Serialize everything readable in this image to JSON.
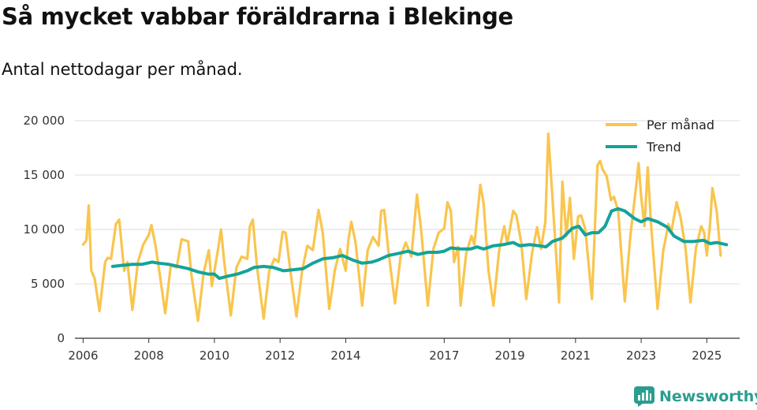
{
  "header": {
    "title": "Så mycket vabbar föräldrarna i Blekinge",
    "subtitle": "Antal nettodagar per månad."
  },
  "brand": {
    "name": "Newsworthy",
    "color": "#2a9d8f"
  },
  "chart_data": {
    "type": "line",
    "title": "Så mycket vabbar föräldrarna i Blekinge",
    "subtitle": "Antal nettodagar per månad.",
    "xlabel": "",
    "ylabel": "",
    "xlim": [
      2005.75,
      2026.0
    ],
    "ylim": [
      0,
      20000
    ],
    "grid": true,
    "y_ticks": [
      {
        "value": 0,
        "label": "0"
      },
      {
        "value": 5000,
        "label": "5 000"
      },
      {
        "value": 10000,
        "label": "10 000"
      },
      {
        "value": 15000,
        "label": "15 000"
      },
      {
        "value": 20000,
        "label": "20 000"
      }
    ],
    "x_ticks": [
      {
        "value": 2006,
        "label": "2006"
      },
      {
        "value": 2008,
        "label": "2008"
      },
      {
        "value": 2010,
        "label": "2010"
      },
      {
        "value": 2012,
        "label": "2012"
      },
      {
        "value": 2014,
        "label": "2014"
      },
      {
        "value": 2017,
        "label": "2017"
      },
      {
        "value": 2019,
        "label": "2019"
      },
      {
        "value": 2021,
        "label": "2021"
      },
      {
        "value": 2023,
        "label": "2023"
      },
      {
        "value": 2025,
        "label": "2025"
      }
    ],
    "legend_position": "top-right",
    "series": [
      {
        "name": "Per månad",
        "color": "#f9c54e",
        "points": [
          [
            2006.0,
            8600
          ],
          [
            2006.1,
            9000
          ],
          [
            2006.17,
            12200
          ],
          [
            2006.25,
            6200
          ],
          [
            2006.35,
            5500
          ],
          [
            2006.5,
            2500
          ],
          [
            2006.67,
            7000
          ],
          [
            2006.75,
            7400
          ],
          [
            2006.85,
            7300
          ],
          [
            2007.0,
            10500
          ],
          [
            2007.1,
            10900
          ],
          [
            2007.25,
            6200
          ],
          [
            2007.35,
            7000
          ],
          [
            2007.5,
            2600
          ],
          [
            2007.67,
            7000
          ],
          [
            2007.83,
            8600
          ],
          [
            2008.0,
            9500
          ],
          [
            2008.08,
            10400
          ],
          [
            2008.2,
            8600
          ],
          [
            2008.33,
            6000
          ],
          [
            2008.5,
            2300
          ],
          [
            2008.67,
            6700
          ],
          [
            2008.85,
            6500
          ],
          [
            2009.0,
            9100
          ],
          [
            2009.2,
            8900
          ],
          [
            2009.3,
            5800
          ],
          [
            2009.5,
            1600
          ],
          [
            2009.67,
            6000
          ],
          [
            2009.83,
            8100
          ],
          [
            2009.92,
            4800
          ],
          [
            2010.1,
            8000
          ],
          [
            2010.2,
            10000
          ],
          [
            2010.3,
            7000
          ],
          [
            2010.5,
            2100
          ],
          [
            2010.67,
            6500
          ],
          [
            2010.83,
            7500
          ],
          [
            2011.0,
            7300
          ],
          [
            2011.08,
            10300
          ],
          [
            2011.17,
            10900
          ],
          [
            2011.3,
            6500
          ],
          [
            2011.5,
            1800
          ],
          [
            2011.67,
            6200
          ],
          [
            2011.83,
            7300
          ],
          [
            2011.95,
            7000
          ],
          [
            2012.08,
            9800
          ],
          [
            2012.17,
            9700
          ],
          [
            2012.3,
            6500
          ],
          [
            2012.5,
            2000
          ],
          [
            2012.67,
            6200
          ],
          [
            2012.83,
            8500
          ],
          [
            2013.0,
            8100
          ],
          [
            2013.17,
            11800
          ],
          [
            2013.3,
            9700
          ],
          [
            2013.5,
            2700
          ],
          [
            2013.67,
            6300
          ],
          [
            2013.83,
            8200
          ],
          [
            2014.0,
            6200
          ],
          [
            2014.08,
            9000
          ],
          [
            2014.17,
            10700
          ],
          [
            2014.3,
            8800
          ],
          [
            2014.5,
            3000
          ],
          [
            2014.67,
            8100
          ],
          [
            2014.83,
            9300
          ],
          [
            2015.0,
            8500
          ],
          [
            2015.08,
            11700
          ],
          [
            2015.17,
            11800
          ],
          [
            2015.3,
            8000
          ],
          [
            2015.5,
            3200
          ],
          [
            2015.67,
            7500
          ],
          [
            2015.83,
            8800
          ],
          [
            2016.0,
            7500
          ],
          [
            2016.17,
            13200
          ],
          [
            2016.3,
            9900
          ],
          [
            2016.5,
            3000
          ],
          [
            2016.67,
            8200
          ],
          [
            2016.83,
            9700
          ],
          [
            2017.0,
            10100
          ],
          [
            2017.1,
            12500
          ],
          [
            2017.2,
            11700
          ],
          [
            2017.3,
            7000
          ],
          [
            2017.42,
            8400
          ],
          [
            2017.5,
            3000
          ],
          [
            2017.67,
            7800
          ],
          [
            2017.83,
            9400
          ],
          [
            2017.92,
            8600
          ],
          [
            2018.1,
            14100
          ],
          [
            2018.2,
            12400
          ],
          [
            2018.35,
            6200
          ],
          [
            2018.5,
            3000
          ],
          [
            2018.67,
            8000
          ],
          [
            2018.83,
            10300
          ],
          [
            2018.92,
            8700
          ],
          [
            2019.1,
            11700
          ],
          [
            2019.2,
            11300
          ],
          [
            2019.35,
            8700
          ],
          [
            2019.5,
            3600
          ],
          [
            2019.67,
            7700
          ],
          [
            2019.83,
            10200
          ],
          [
            2019.95,
            8200
          ],
          [
            2020.08,
            10700
          ],
          [
            2020.17,
            18800
          ],
          [
            2020.3,
            12800
          ],
          [
            2020.4,
            8100
          ],
          [
            2020.5,
            3300
          ],
          [
            2020.6,
            14400
          ],
          [
            2020.72,
            9400
          ],
          [
            2020.83,
            12900
          ],
          [
            2020.95,
            7300
          ],
          [
            2021.08,
            11200
          ],
          [
            2021.17,
            11300
          ],
          [
            2021.3,
            10000
          ],
          [
            2021.5,
            3600
          ],
          [
            2021.67,
            15900
          ],
          [
            2021.75,
            16300
          ],
          [
            2021.83,
            15500
          ],
          [
            2021.95,
            14900
          ],
          [
            2022.08,
            12700
          ],
          [
            2022.17,
            13000
          ],
          [
            2022.3,
            11700
          ],
          [
            2022.5,
            3400
          ],
          [
            2022.67,
            9400
          ],
          [
            2022.83,
            13500
          ],
          [
            2022.92,
            16100
          ],
          [
            2023.0,
            13000
          ],
          [
            2023.1,
            10300
          ],
          [
            2023.2,
            15700
          ],
          [
            2023.3,
            10500
          ],
          [
            2023.5,
            2700
          ],
          [
            2023.67,
            8000
          ],
          [
            2023.83,
            10500
          ],
          [
            2023.92,
            9800
          ],
          [
            2024.08,
            12500
          ],
          [
            2024.2,
            11100
          ],
          [
            2024.35,
            8300
          ],
          [
            2024.5,
            3300
          ],
          [
            2024.67,
            8300
          ],
          [
            2024.83,
            10300
          ],
          [
            2024.92,
            9700
          ],
          [
            2025.0,
            7600
          ],
          [
            2025.1,
            10500
          ],
          [
            2025.17,
            13800
          ],
          [
            2025.3,
            11700
          ],
          [
            2025.42,
            7600
          ]
        ]
      },
      {
        "name": "Trend",
        "color": "#14a39a",
        "points": [
          [
            2006.9,
            6600
          ],
          [
            2007.2,
            6700
          ],
          [
            2007.5,
            6800
          ],
          [
            2007.8,
            6800
          ],
          [
            2008.1,
            7000
          ],
          [
            2008.3,
            6900
          ],
          [
            2008.6,
            6800
          ],
          [
            2008.9,
            6600
          ],
          [
            2009.2,
            6400
          ],
          [
            2009.5,
            6100
          ],
          [
            2009.8,
            5900
          ],
          [
            2010.0,
            5900
          ],
          [
            2010.15,
            5500
          ],
          [
            2010.4,
            5700
          ],
          [
            2010.7,
            5900
          ],
          [
            2011.0,
            6200
          ],
          [
            2011.2,
            6500
          ],
          [
            2011.5,
            6600
          ],
          [
            2011.8,
            6500
          ],
          [
            2012.1,
            6200
          ],
          [
            2012.4,
            6300
          ],
          [
            2012.7,
            6400
          ],
          [
            2013.0,
            6900
          ],
          [
            2013.3,
            7300
          ],
          [
            2013.6,
            7400
          ],
          [
            2013.9,
            7600
          ],
          [
            2014.2,
            7200
          ],
          [
            2014.5,
            6900
          ],
          [
            2014.8,
            7000
          ],
          [
            2015.0,
            7200
          ],
          [
            2015.3,
            7600
          ],
          [
            2015.6,
            7800
          ],
          [
            2015.9,
            8000
          ],
          [
            2016.2,
            7700
          ],
          [
            2016.5,
            7900
          ],
          [
            2016.8,
            7900
          ],
          [
            2017.0,
            8000
          ],
          [
            2017.2,
            8300
          ],
          [
            2017.5,
            8200
          ],
          [
            2017.8,
            8200
          ],
          [
            2018.0,
            8400
          ],
          [
            2018.2,
            8200
          ],
          [
            2018.5,
            8500
          ],
          [
            2018.8,
            8600
          ],
          [
            2019.1,
            8800
          ],
          [
            2019.3,
            8500
          ],
          [
            2019.6,
            8600
          ],
          [
            2019.9,
            8500
          ],
          [
            2020.1,
            8400
          ],
          [
            2020.3,
            8900
          ],
          [
            2020.6,
            9200
          ],
          [
            2020.9,
            10100
          ],
          [
            2021.1,
            10300
          ],
          [
            2021.3,
            9500
          ],
          [
            2021.5,
            9700
          ],
          [
            2021.7,
            9700
          ],
          [
            2021.9,
            10300
          ],
          [
            2022.1,
            11700
          ],
          [
            2022.3,
            11900
          ],
          [
            2022.5,
            11700
          ],
          [
            2022.8,
            11000
          ],
          [
            2023.0,
            10700
          ],
          [
            2023.2,
            11000
          ],
          [
            2023.5,
            10700
          ],
          [
            2023.8,
            10200
          ],
          [
            2024.0,
            9400
          ],
          [
            2024.3,
            8900
          ],
          [
            2024.6,
            8900
          ],
          [
            2024.9,
            9000
          ],
          [
            2025.1,
            8700
          ],
          [
            2025.3,
            8800
          ],
          [
            2025.6,
            8600
          ]
        ]
      }
    ]
  }
}
